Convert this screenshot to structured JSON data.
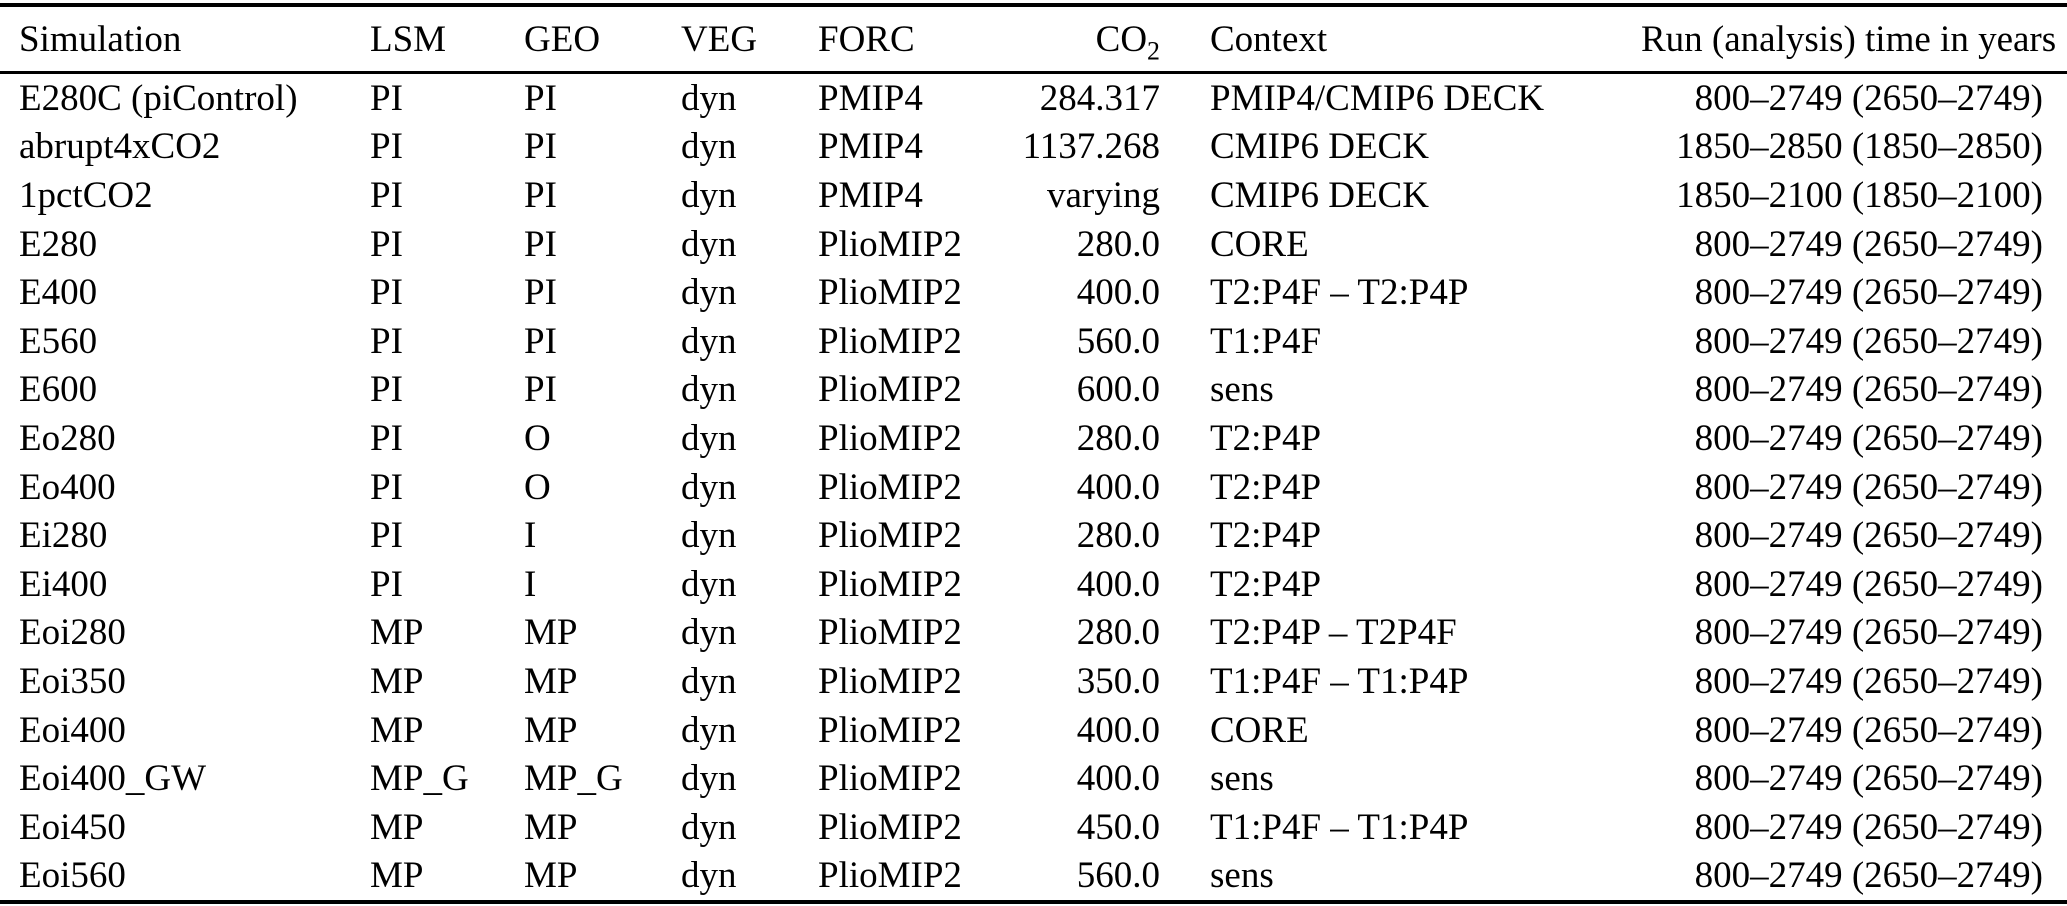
{
  "page": {
    "background_color": "#ffffff",
    "text_color": "#000000",
    "rule_color": "#000000"
  },
  "table": {
    "headers": {
      "simulation": "Simulation",
      "lsm": "LSM",
      "geo": "GEO",
      "veg": "VEG",
      "forc": "FORC",
      "co2_base": "CO",
      "co2_subscript": "2",
      "context": "Context",
      "run": "Run (analysis) time in years"
    },
    "rows": [
      [
        "E280C (piControl)",
        "PI",
        "PI",
        "dyn",
        "PMIP4",
        "284.317",
        "PMIP4/CMIP6 DECK",
        "800–2749 (2650–2749)"
      ],
      [
        "abrupt4xCO2",
        "PI",
        "PI",
        "dyn",
        "PMIP4",
        "1137.268",
        "CMIP6 DECK",
        "1850–2850 (1850–2850)"
      ],
      [
        "1pctCO2",
        "PI",
        "PI",
        "dyn",
        "PMIP4",
        "varying",
        "CMIP6 DECK",
        "1850–2100 (1850–2100)"
      ],
      [
        "E280",
        "PI",
        "PI",
        "dyn",
        "PlioMIP2",
        "280.0",
        "CORE",
        "800–2749 (2650–2749)"
      ],
      [
        "E400",
        "PI",
        "PI",
        "dyn",
        "PlioMIP2",
        "400.0",
        "T2:P4F – T2:P4P",
        "800–2749 (2650–2749)"
      ],
      [
        "E560",
        "PI",
        "PI",
        "dyn",
        "PlioMIP2",
        "560.0",
        "T1:P4F",
        "800–2749 (2650–2749)"
      ],
      [
        "E600",
        "PI",
        "PI",
        "dyn",
        "PlioMIP2",
        "600.0",
        "sens",
        "800–2749 (2650–2749)"
      ],
      [
        "Eo280",
        "PI",
        "O",
        "dyn",
        "PlioMIP2",
        "280.0",
        "T2:P4P",
        "800–2749 (2650–2749)"
      ],
      [
        "Eo400",
        "PI",
        "O",
        "dyn",
        "PlioMIP2",
        "400.0",
        "T2:P4P",
        "800–2749 (2650–2749)"
      ],
      [
        "Ei280",
        "PI",
        "I",
        "dyn",
        "PlioMIP2",
        "280.0",
        "T2:P4P",
        "800–2749 (2650–2749)"
      ],
      [
        "Ei400",
        "PI",
        "I",
        "dyn",
        "PlioMIP2",
        "400.0",
        "T2:P4P",
        "800–2749 (2650–2749)"
      ],
      [
        "Eoi280",
        "MP",
        "MP",
        "dyn",
        "PlioMIP2",
        "280.0",
        "T2:P4P – T2P4F",
        "800–2749 (2650–2749)"
      ],
      [
        "Eoi350",
        "MP",
        "MP",
        "dyn",
        "PlioMIP2",
        "350.0",
        "T1:P4F – T1:P4P",
        "800–2749 (2650–2749)"
      ],
      [
        "Eoi400",
        "MP",
        "MP",
        "dyn",
        "PlioMIP2",
        "400.0",
        "CORE",
        "800–2749 (2650–2749)"
      ],
      [
        "Eoi400_GW",
        "MP_G",
        "MP_G",
        "dyn",
        "PlioMIP2",
        "400.0",
        "sens",
        "800–2749 (2650–2749)"
      ],
      [
        "Eoi450",
        "MP",
        "MP",
        "dyn",
        "PlioMIP2",
        "450.0",
        "T1:P4F – T1:P4P",
        "800–2749 (2650–2749)"
      ],
      [
        "Eoi560",
        "MP",
        "MP",
        "dyn",
        "PlioMIP2",
        "560.0",
        "sens",
        "800–2749 (2650–2749)"
      ]
    ]
  }
}
